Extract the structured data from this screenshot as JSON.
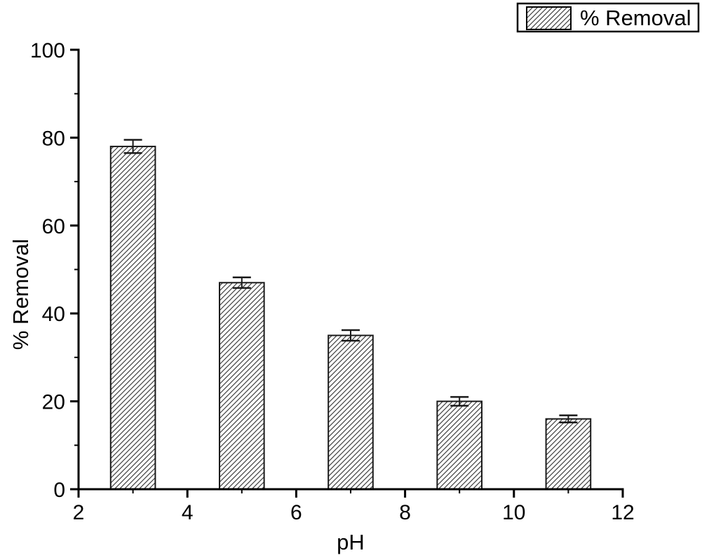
{
  "chart_data": {
    "type": "bar",
    "title": "",
    "xlabel": "pH",
    "ylabel": "% Removal",
    "legend": {
      "label": "% Removal",
      "position": "top-right",
      "swatch": "diagonal-hatch"
    },
    "categories": [
      3,
      5,
      7,
      9,
      11
    ],
    "series": [
      {
        "name": "% Removal",
        "values": [
          78,
          47,
          35,
          20,
          16
        ],
        "errors": [
          1.5,
          1.2,
          1.2,
          1.0,
          0.8
        ]
      }
    ],
    "bar_width_x_units": 0.82,
    "xlim": [
      2,
      12
    ],
    "ylim": [
      0,
      100
    ],
    "x_major_ticks": [
      2,
      4,
      6,
      8,
      10,
      12
    ],
    "x_minor_ticks": [
      3,
      5,
      7,
      9,
      11
    ],
    "y_major_ticks": [
      0,
      20,
      40,
      60,
      80,
      100
    ],
    "y_minor_ticks": [
      10,
      30,
      50,
      70,
      90
    ],
    "grid": false,
    "bar_fill": "diagonal-hatch",
    "colors": {
      "axis": "#000000",
      "text": "#000000",
      "bar_border": "#1a1a1a",
      "hatch_line": "#3f3f3f",
      "error_bar": "#1a1a1a",
      "background": "#ffffff"
    }
  }
}
